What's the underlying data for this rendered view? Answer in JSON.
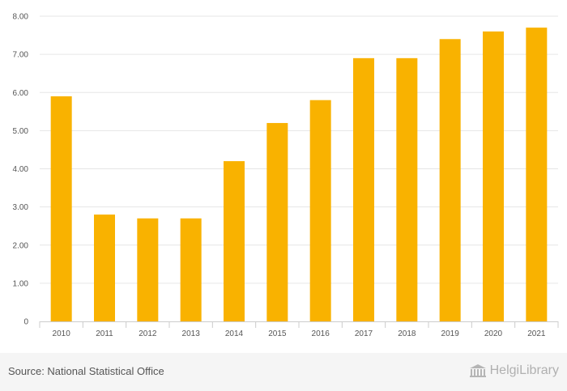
{
  "chart_data": {
    "type": "bar",
    "categories": [
      "2010",
      "2011",
      "2012",
      "2013",
      "2014",
      "2015",
      "2016",
      "2017",
      "2018",
      "2019",
      "2020",
      "2021"
    ],
    "values": [
      5.9,
      2.8,
      2.7,
      2.7,
      4.2,
      5.2,
      5.8,
      6.9,
      6.9,
      7.4,
      7.6,
      7.7
    ],
    "ylim": [
      0,
      8
    ],
    "yticks": [
      0,
      1,
      2,
      3,
      4,
      5,
      6,
      7,
      8
    ],
    "ytick_labels": [
      "0",
      "1.00",
      "2.00",
      "3.00",
      "4.00",
      "5.00",
      "6.00",
      "7.00",
      "8.00"
    ],
    "grid": true,
    "bar_color": "#f9b200",
    "title": "",
    "xlabel": "",
    "ylabel": ""
  },
  "footer": {
    "source": "Source: National Statistical Office",
    "logo_text": "HelgiLibrary"
  }
}
